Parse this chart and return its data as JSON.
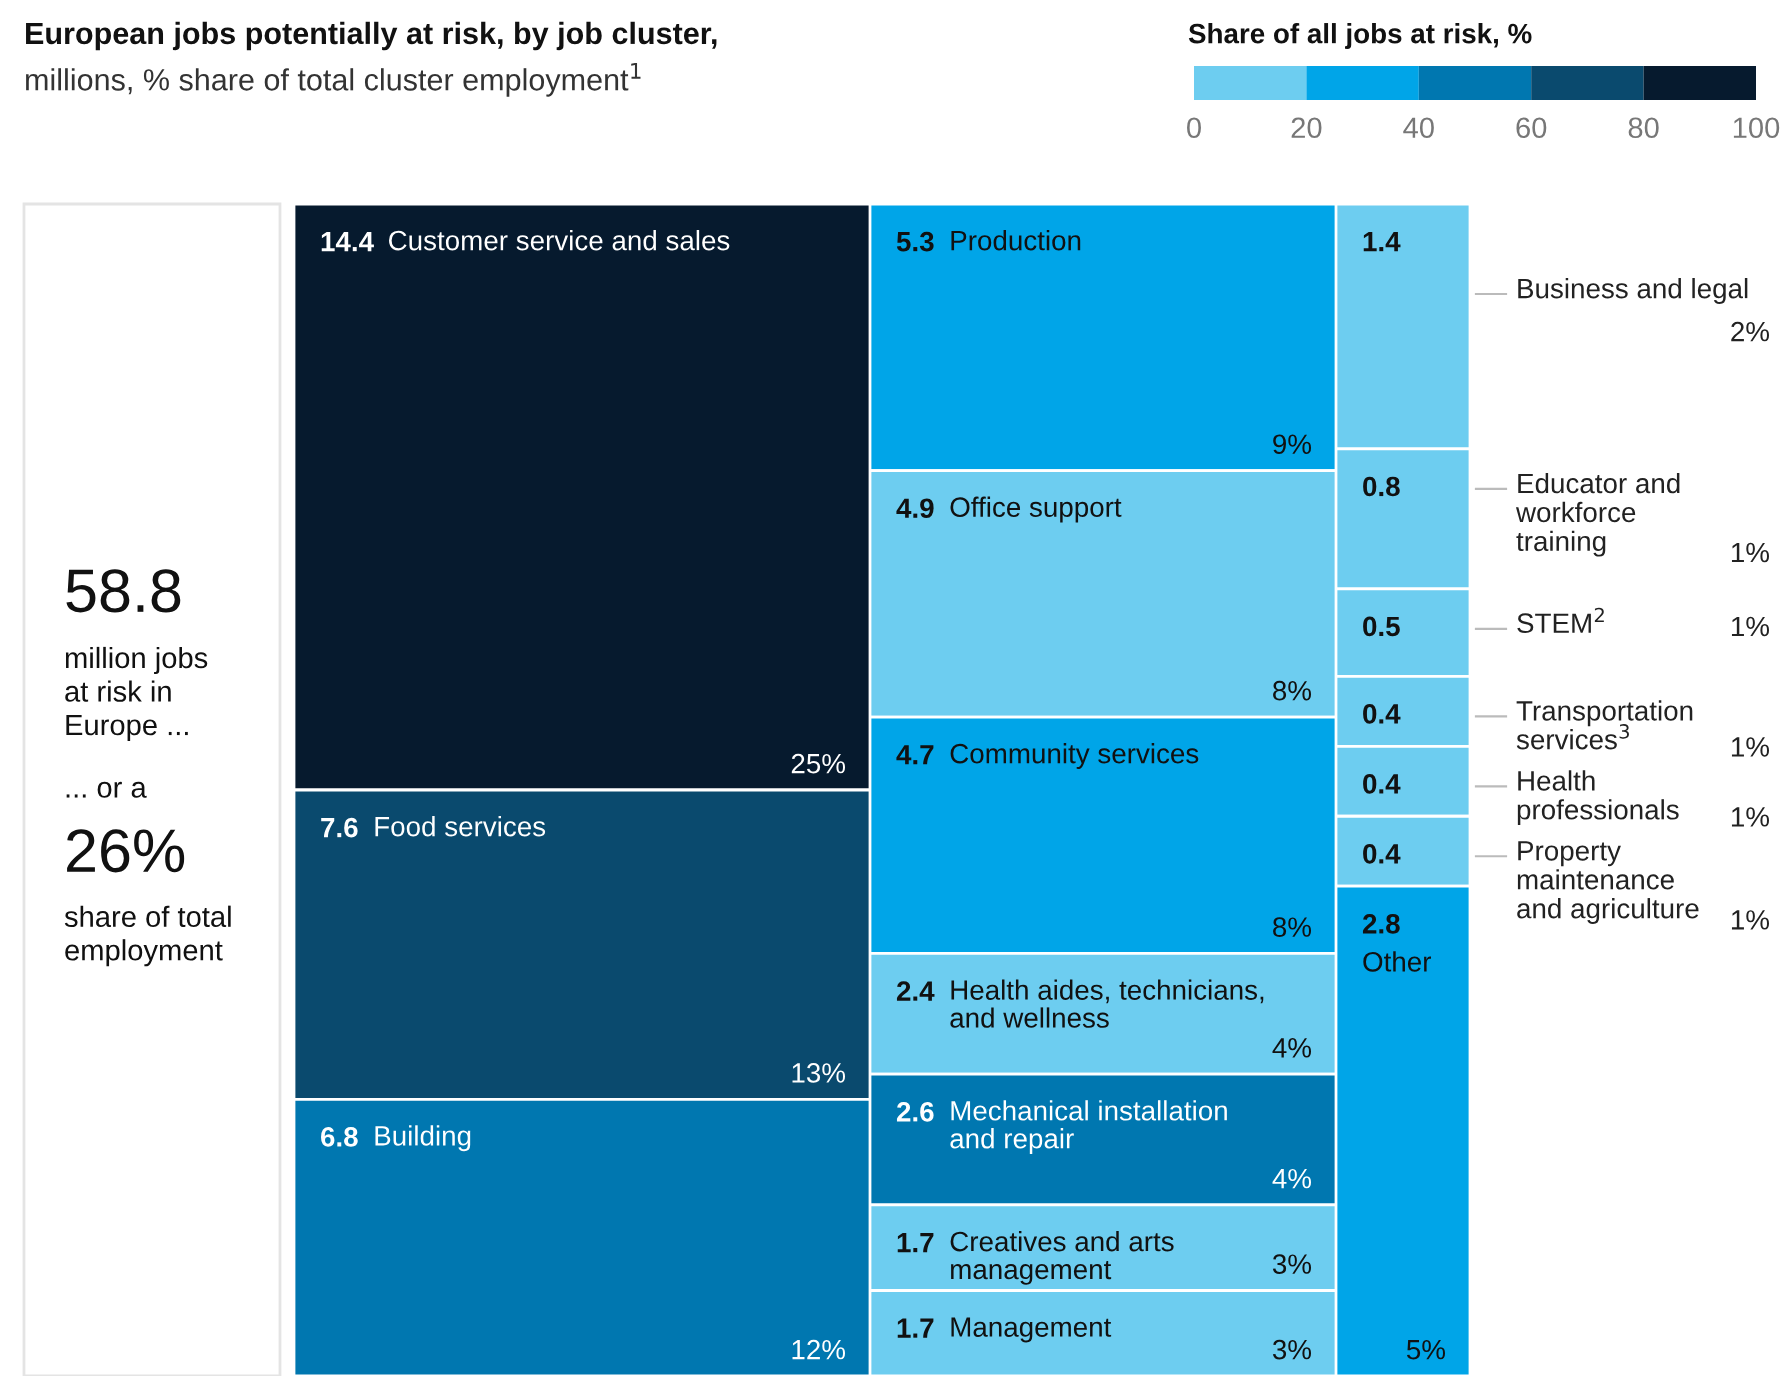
{
  "chart_data": [
    {
      "type": "other",
      "title": "European jobs potentially at risk, by job cluster,",
      "subtitle": "millions, % share of total cluster employment$^{1}$",
      "data_labels": true,
      "categories": [
        "Customer service and sales",
        "Food services",
        "Building"
      ],
      "values": [
        14.4,
        7.6,
        6.8
      ],
      "colors": [
        "#061a2e",
        "#0a4a6e",
        "#0077b0"
      ],
      "annotations": [
        "58.8",
        "million jobs\nat risk in\nEurope ...",
        "... or a",
        "26%",
        "share of total\nemployment",
        {
          "text": "25%",
          "x": "Customer service and sales"
        },
        {
          "text": "13%",
          "x": "Food services"
        },
        {
          "text": "12%",
          "x": "Building"
        }
      ]
    },
    {
      "type": "other",
      "data_labels": true,
      "categories": [
        "Production",
        "Office support",
        "Community services",
        "Health aides, technicians,\nand wellness",
        "Mechanical installation\nand repair",
        "Creatives and arts\nmanagement",
        "Management"
      ],
      "values": [
        5.3,
        4.9,
        4.7,
        2.4,
        2.6,
        1.7,
        1.7
      ],
      "colors": [
        "#00a5e8",
        "#6dcdf0",
        "#00a5e8",
        "#6dcdf0",
        "#0077b0",
        "#6dcdf0",
        "#6dcdf0"
      ],
      "annotations": [
        {
          "text": "9%",
          "x": "Production"
        },
        {
          "text": "8%",
          "x": "Office support"
        },
        {
          "text": "8%",
          "x": "Community services"
        },
        {
          "text": "4%",
          "x": "Health aides, technicians,\nand wellness"
        },
        {
          "text": "4%",
          "x": "Mechanical installation\nand repair"
        },
        {
          "text": "3%",
          "x": "Creatives and arts\nmanagement"
        },
        {
          "text": "3%",
          "x": "Management"
        }
      ]
    },
    {
      "type": "other",
      "data_labels": true,
      "categories": [
        "Business and legal",
        "Educator and\nworkforce\ntraining",
        "STEM$^{2}$",
        "Transportation\nservices$^{3}$",
        "Health\nprofessionals",
        "Property\nmaintenance\nand agriculture",
        "Other"
      ],
      "values": [
        1.4,
        0.8,
        0.5,
        0.4,
        0.4,
        0.4,
        2.8
      ],
      "colors": [
        "#6dcdf0",
        "#6dcdf0",
        "#6dcdf0",
        "#6dcdf0",
        "#6dcdf0",
        "#6dcdf0",
        "#00a5e8"
      ],
      "annotations": [
        {
          "text": "2%",
          "x": "Business and legal"
        },
        {
          "text": "1%",
          "x": "Educator and\nworkforce\ntraining"
        },
        {
          "text": "1%",
          "x": "STEM$^{2}$"
        },
        {
          "text": "1%",
          "x": "Transportation\nservices$^{3}$"
        },
        {
          "text": "1%",
          "x": "Health\nprofessionals"
        },
        {
          "text": "1%",
          "x": "Property\nmaintenance\nand agriculture"
        },
        {
          "text": "5%",
          "x": "Other"
        }
      ]
    },
    {
      "type": "bar",
      "orientation": "horizontal",
      "title": "Share of all jobs at risk, %",
      "categories": [
        null
      ],
      "series": [
        {
          "color": "#6dcdf0",
          "values": [
            20
          ],
          "base": [
            0
          ]
        },
        {
          "color": "#00a5e8",
          "values": [
            20
          ],
          "base": [
            20
          ]
        },
        {
          "color": "#0077b0",
          "values": [
            20
          ],
          "base": [
            40
          ]
        },
        {
          "color": "#0a4a6e",
          "values": [
            20
          ],
          "base": [
            60
          ]
        },
        {
          "color": "#061a2e",
          "values": [
            20
          ],
          "base": [
            80
          ]
        }
      ],
      "xlim": [
        0,
        100
      ],
      "xticks": [
        0,
        20,
        40,
        60,
        80,
        100
      ]
    }
  ]
}
